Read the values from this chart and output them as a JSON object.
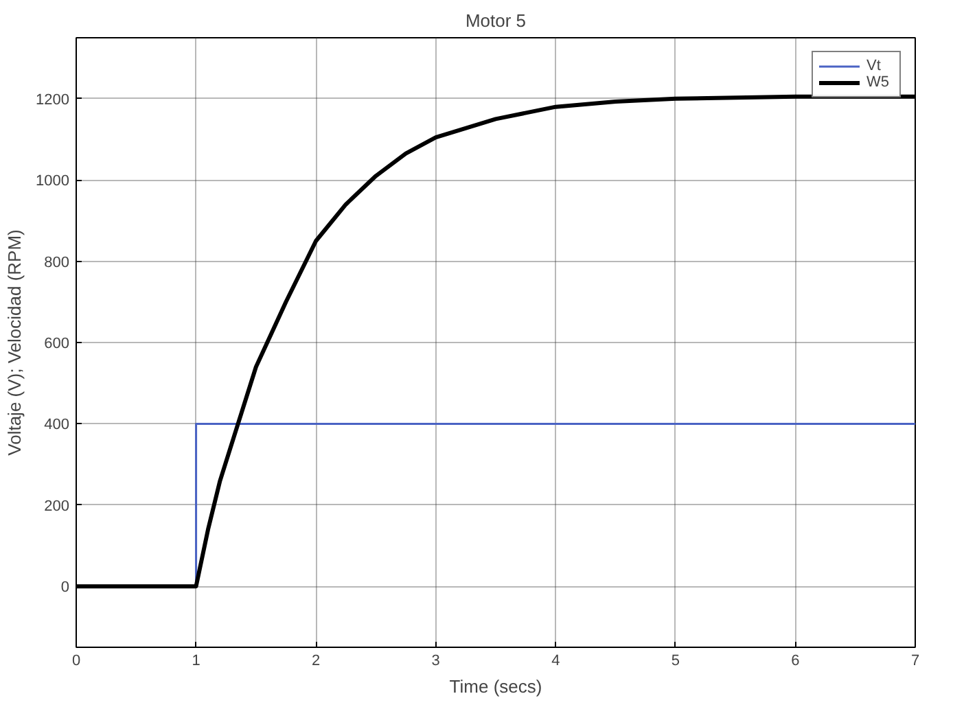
{
  "chart_data": {
    "type": "line",
    "title": "Motor 5",
    "xlabel": "Time (secs)",
    "ylabel": "Voltaje (V); Velocidad (RPM)",
    "xlim": [
      0,
      7
    ],
    "ylim": [
      -150,
      1350
    ],
    "xticks": [
      0,
      1,
      2,
      3,
      4,
      5,
      6,
      7
    ],
    "yticks": [
      0,
      200,
      400,
      600,
      800,
      1000,
      1200
    ],
    "grid": true,
    "legend": "top right",
    "series": [
      {
        "name": "Vt",
        "color": "#4a63c4",
        "x": [
          0,
          1,
          1,
          7
        ],
        "values": [
          0,
          0,
          400,
          400
        ]
      },
      {
        "name": "W5",
        "color": "#000000",
        "x": [
          0,
          1,
          1.1,
          1.2,
          1.35,
          1.5,
          1.75,
          2,
          2.25,
          2.5,
          2.75,
          3,
          3.5,
          4,
          4.5,
          5,
          6,
          7
        ],
        "values": [
          0,
          0,
          140,
          260,
          400,
          540,
          700,
          850,
          940,
          1010,
          1065,
          1105,
          1150,
          1180,
          1193,
          1200,
          1205,
          1205
        ]
      }
    ]
  }
}
